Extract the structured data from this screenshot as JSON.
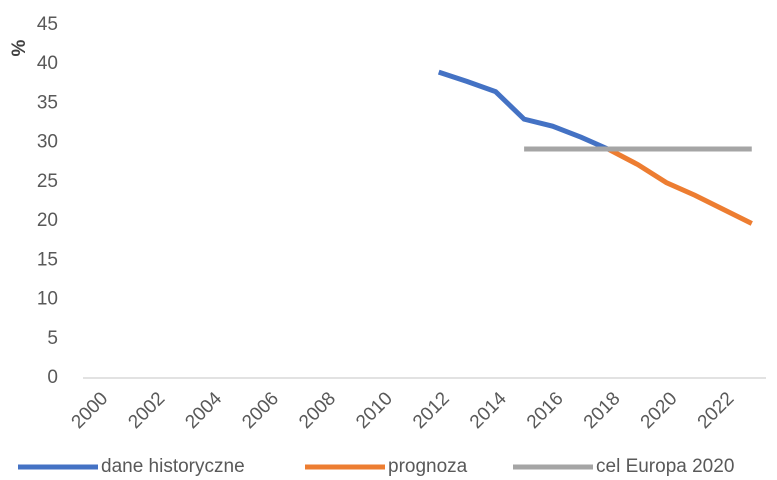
{
  "chart_data": {
    "type": "line",
    "ylabel": "%",
    "xlim": [
      1999.5,
      2023.5
    ],
    "xticks": [
      2000,
      2002,
      2004,
      2006,
      2008,
      2010,
      2012,
      2014,
      2016,
      2018,
      2020,
      2022
    ],
    "ylim": [
      0,
      45
    ],
    "yticks": [
      0,
      5,
      10,
      15,
      20,
      25,
      30,
      35,
      40,
      45
    ],
    "grid": false,
    "legend": "bottom",
    "series": [
      {
        "name": "dane historyczne",
        "color": "#4472c4",
        "x": [
          2012,
          2013,
          2014,
          2015,
          2016,
          2017,
          2018
        ],
        "values": [
          39.0,
          37.8,
          36.5,
          33.0,
          32.1,
          30.7,
          29.1
        ]
      },
      {
        "name": "prognoza",
        "color": "#ed7d31",
        "x": [
          2018,
          2019,
          2020,
          2021,
          2022,
          2023
        ],
        "values": [
          29.1,
          27.2,
          24.9,
          23.3,
          21.5,
          19.7
        ]
      },
      {
        "name": "cel Europa 2020",
        "color": "#a5a5a5",
        "x": [
          2015,
          2023
        ],
        "values": [
          29.2,
          29.2
        ]
      }
    ]
  }
}
